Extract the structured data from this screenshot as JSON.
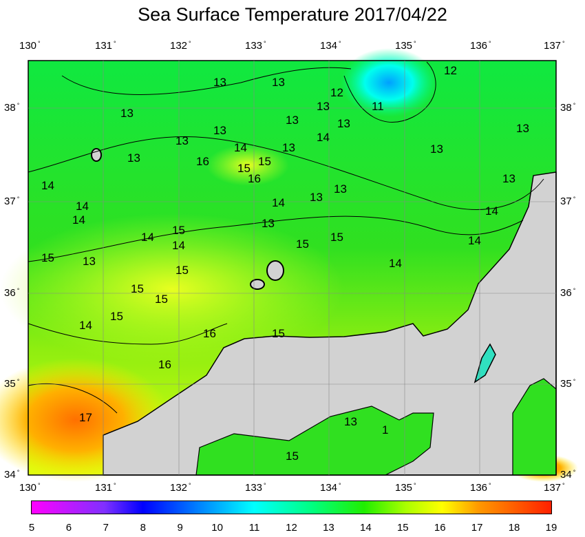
{
  "title": "Sea Surface Temperature 2017/04/22",
  "lon_ticks": [
    "130",
    "131",
    "132",
    "133",
    "134",
    "135",
    "136",
    "137"
  ],
  "lat_ticks": [
    "38",
    "37",
    "36",
    "35",
    "34"
  ],
  "degree_symbol": "°",
  "colorbar": {
    "labels": [
      "5",
      "6",
      "7",
      "8",
      "9",
      "10",
      "11",
      "12",
      "13",
      "14",
      "15",
      "16",
      "17",
      "18",
      "19"
    ],
    "min": 5,
    "max": 19,
    "unit_range": "5-19"
  },
  "contour_labels": [
    "13",
    "13",
    "13",
    "13",
    "13",
    "12",
    "12",
    "11",
    "13",
    "13",
    "13",
    "13",
    "14",
    "14",
    "13",
    "16",
    "15",
    "16",
    "15",
    "13",
    "13",
    "13",
    "13",
    "14",
    "13",
    "14",
    "14",
    "14",
    "13",
    "15",
    "14",
    "15",
    "15",
    "14",
    "15",
    "14",
    "15",
    "15",
    "15",
    "14",
    "16",
    "15",
    "16",
    "17",
    "13",
    "1",
    "15",
    "13",
    "14",
    "15",
    "14"
  ],
  "colors": {
    "sea": "#22dd22",
    "land": "#d2d2d2",
    "warm": "#ff8c00",
    "cold": "#00c8ff"
  }
}
